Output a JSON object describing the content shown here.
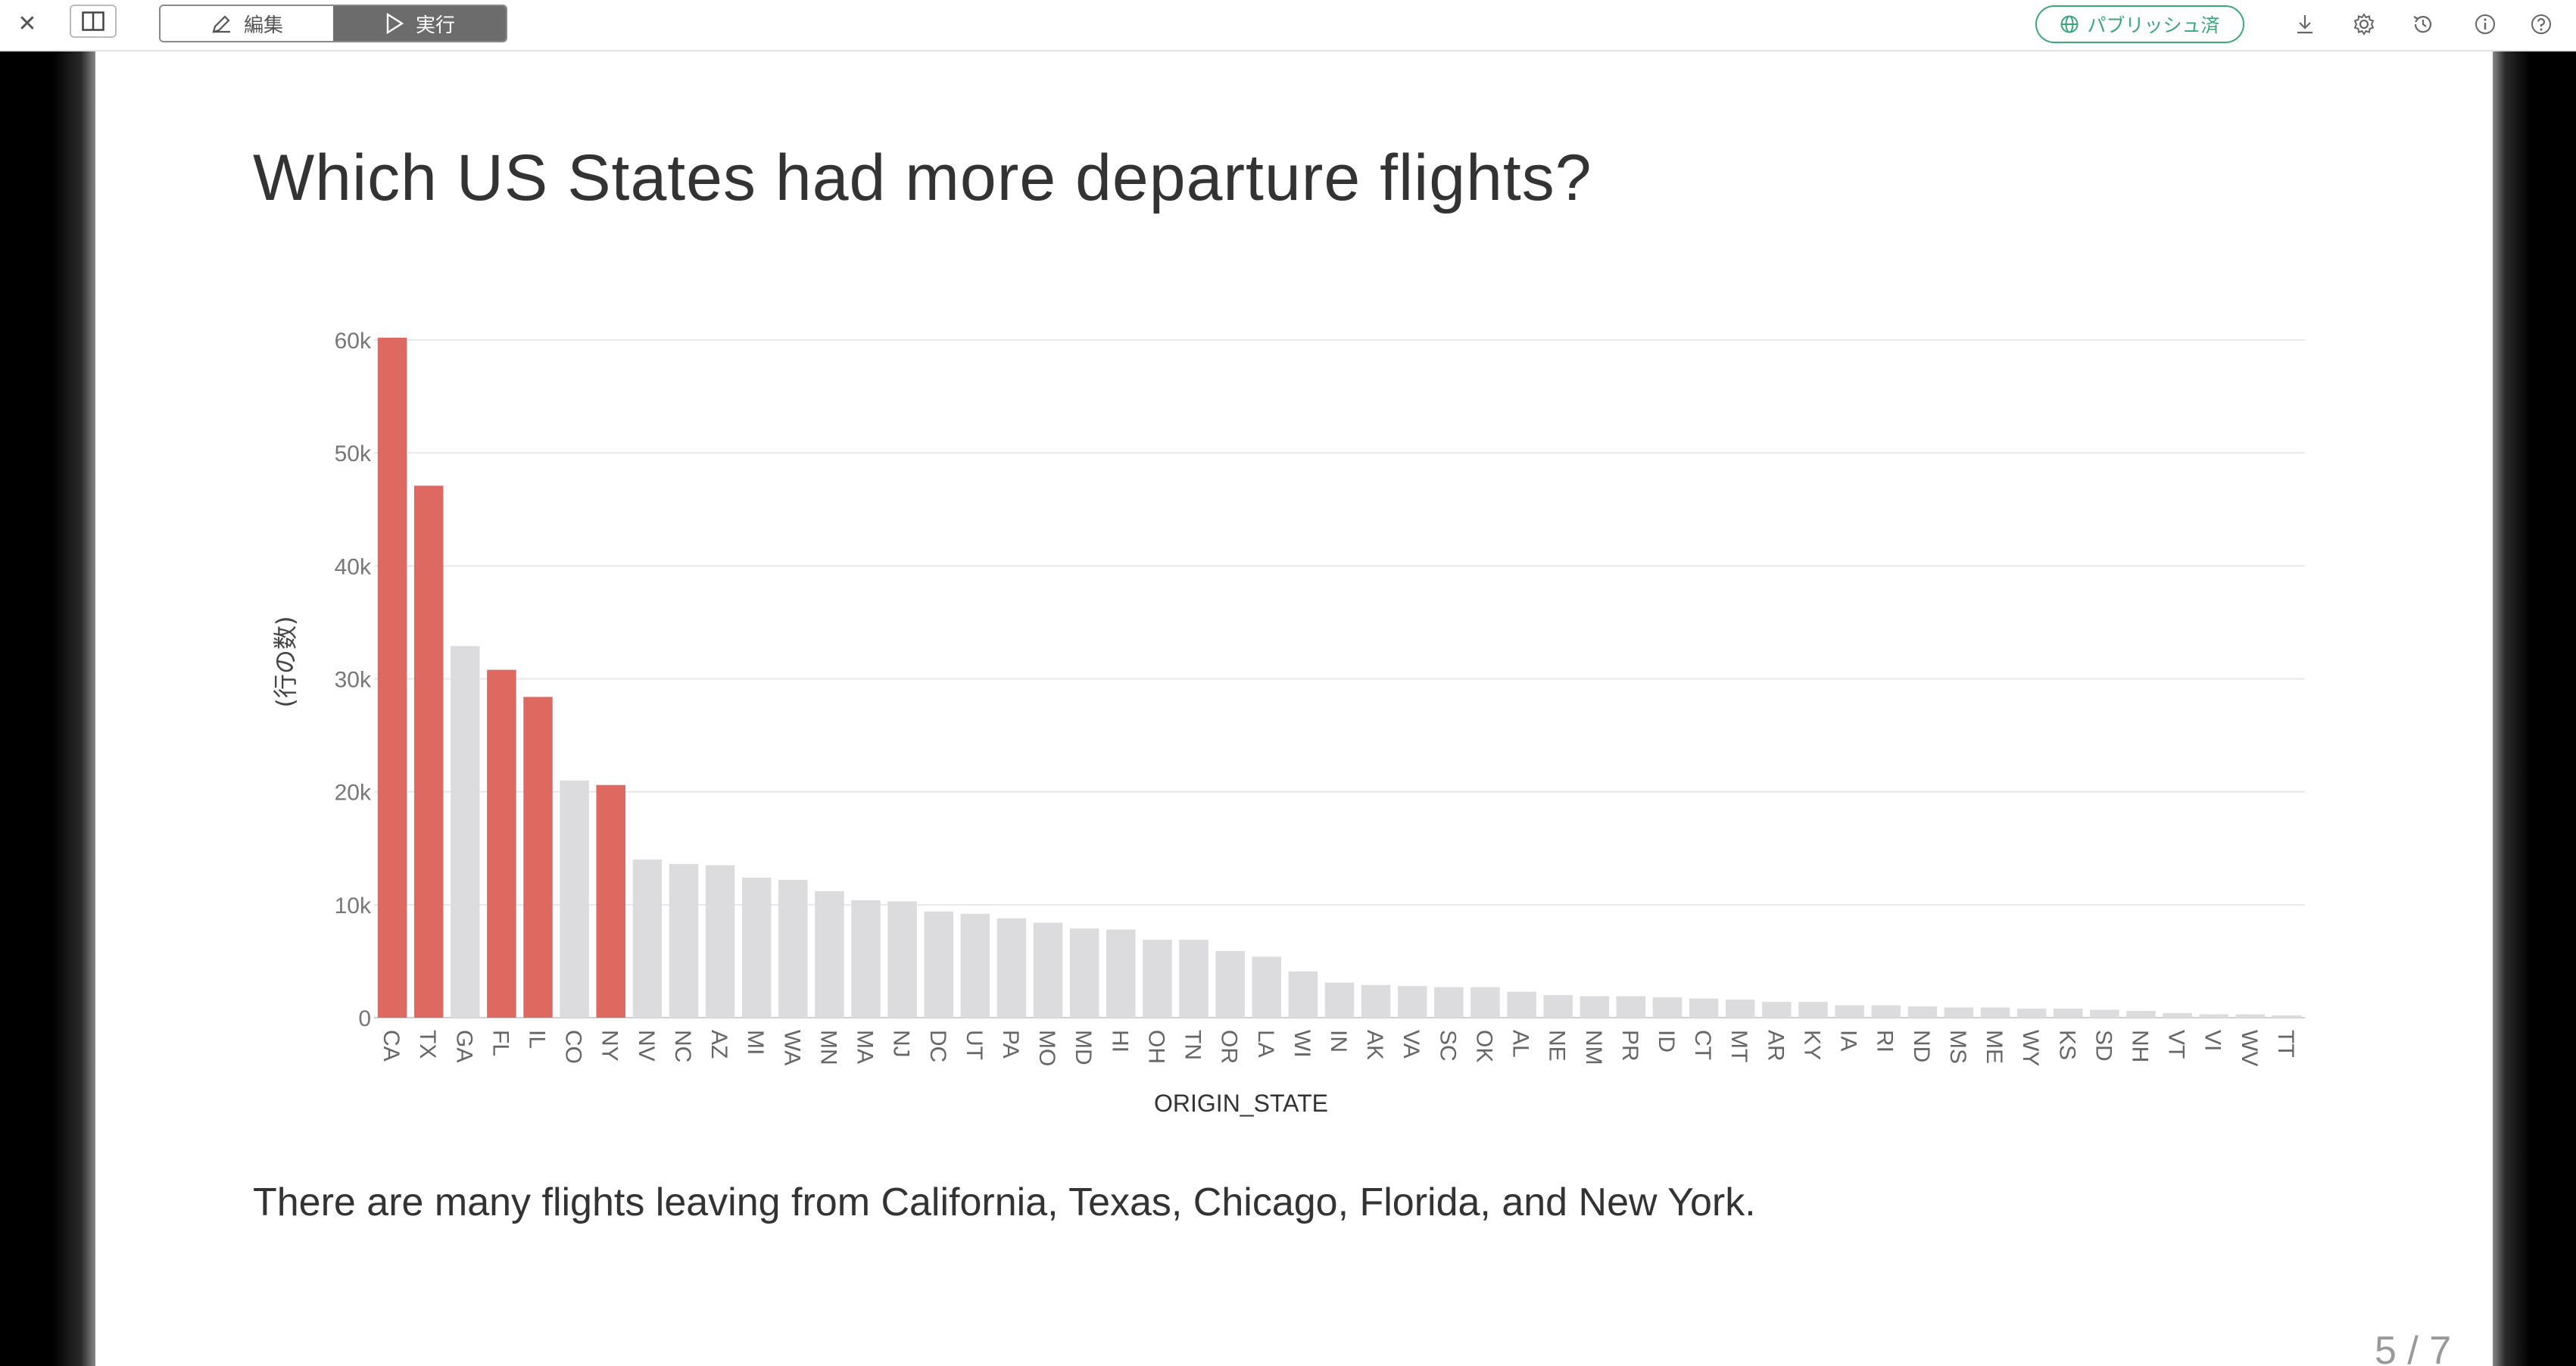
{
  "toolbar": {
    "close_icon": "close-icon",
    "panel_icon": "panel-icon",
    "edit_label": "編集",
    "run_label": "実行",
    "publish_label": "パブリッシュ済",
    "icons": [
      "download-icon",
      "gear-icon",
      "history-icon",
      "info-icon",
      "help-icon"
    ]
  },
  "slide": {
    "title": "Which US States had more departure flights?",
    "description": "There are many flights leaving from California, Texas, Chicago, Florida, and New York.",
    "page_number": "5 / 7"
  },
  "colors": {
    "highlight": "#de6960",
    "default_bar": "#dcdcde",
    "accent_green": "#3aa679"
  },
  "chart_data": {
    "type": "bar",
    "title": "",
    "xlabel": "ORIGIN_STATE",
    "ylabel": "(行の数)",
    "ylim": [
      0,
      60000
    ],
    "yticks": [
      {
        "value": 0,
        "label": "0"
      },
      {
        "value": 10000,
        "label": "10k"
      },
      {
        "value": 20000,
        "label": "20k"
      },
      {
        "value": 30000,
        "label": "30k"
      },
      {
        "value": 40000,
        "label": "40k"
      },
      {
        "value": 50000,
        "label": "50k"
      },
      {
        "value": 60000,
        "label": "60k"
      }
    ],
    "grid": true,
    "categories": [
      "CA",
      "TX",
      "GA",
      "FL",
      "IL",
      "CO",
      "NY",
      "NV",
      "NC",
      "AZ",
      "MI",
      "WA",
      "MN",
      "MA",
      "NJ",
      "DC",
      "UT",
      "PA",
      "MO",
      "MD",
      "HI",
      "OH",
      "TN",
      "OR",
      "LA",
      "WI",
      "IN",
      "AK",
      "VA",
      "SC",
      "OK",
      "AL",
      "NE",
      "NM",
      "PR",
      "ID",
      "CT",
      "MT",
      "AR",
      "KY",
      "IA",
      "RI",
      "ND",
      "MS",
      "ME",
      "WY",
      "KS",
      "SD",
      "NH",
      "VT",
      "VI",
      "WV",
      "TT"
    ],
    "values": [
      60200,
      47100,
      32900,
      30800,
      28400,
      21000,
      20600,
      14000,
      13600,
      13500,
      12400,
      12200,
      11200,
      10400,
      10300,
      9400,
      9200,
      8800,
      8400,
      7900,
      7800,
      6900,
      6900,
      5900,
      5400,
      4100,
      3100,
      2900,
      2800,
      2700,
      2700,
      2300,
      2000,
      1900,
      1900,
      1800,
      1700,
      1600,
      1400,
      1400,
      1100,
      1100,
      1000,
      900,
      900,
      800,
      800,
      700,
      600,
      400,
      300,
      300,
      200
    ],
    "highlighted": [
      "CA",
      "TX",
      "FL",
      "IL",
      "NY"
    ]
  }
}
